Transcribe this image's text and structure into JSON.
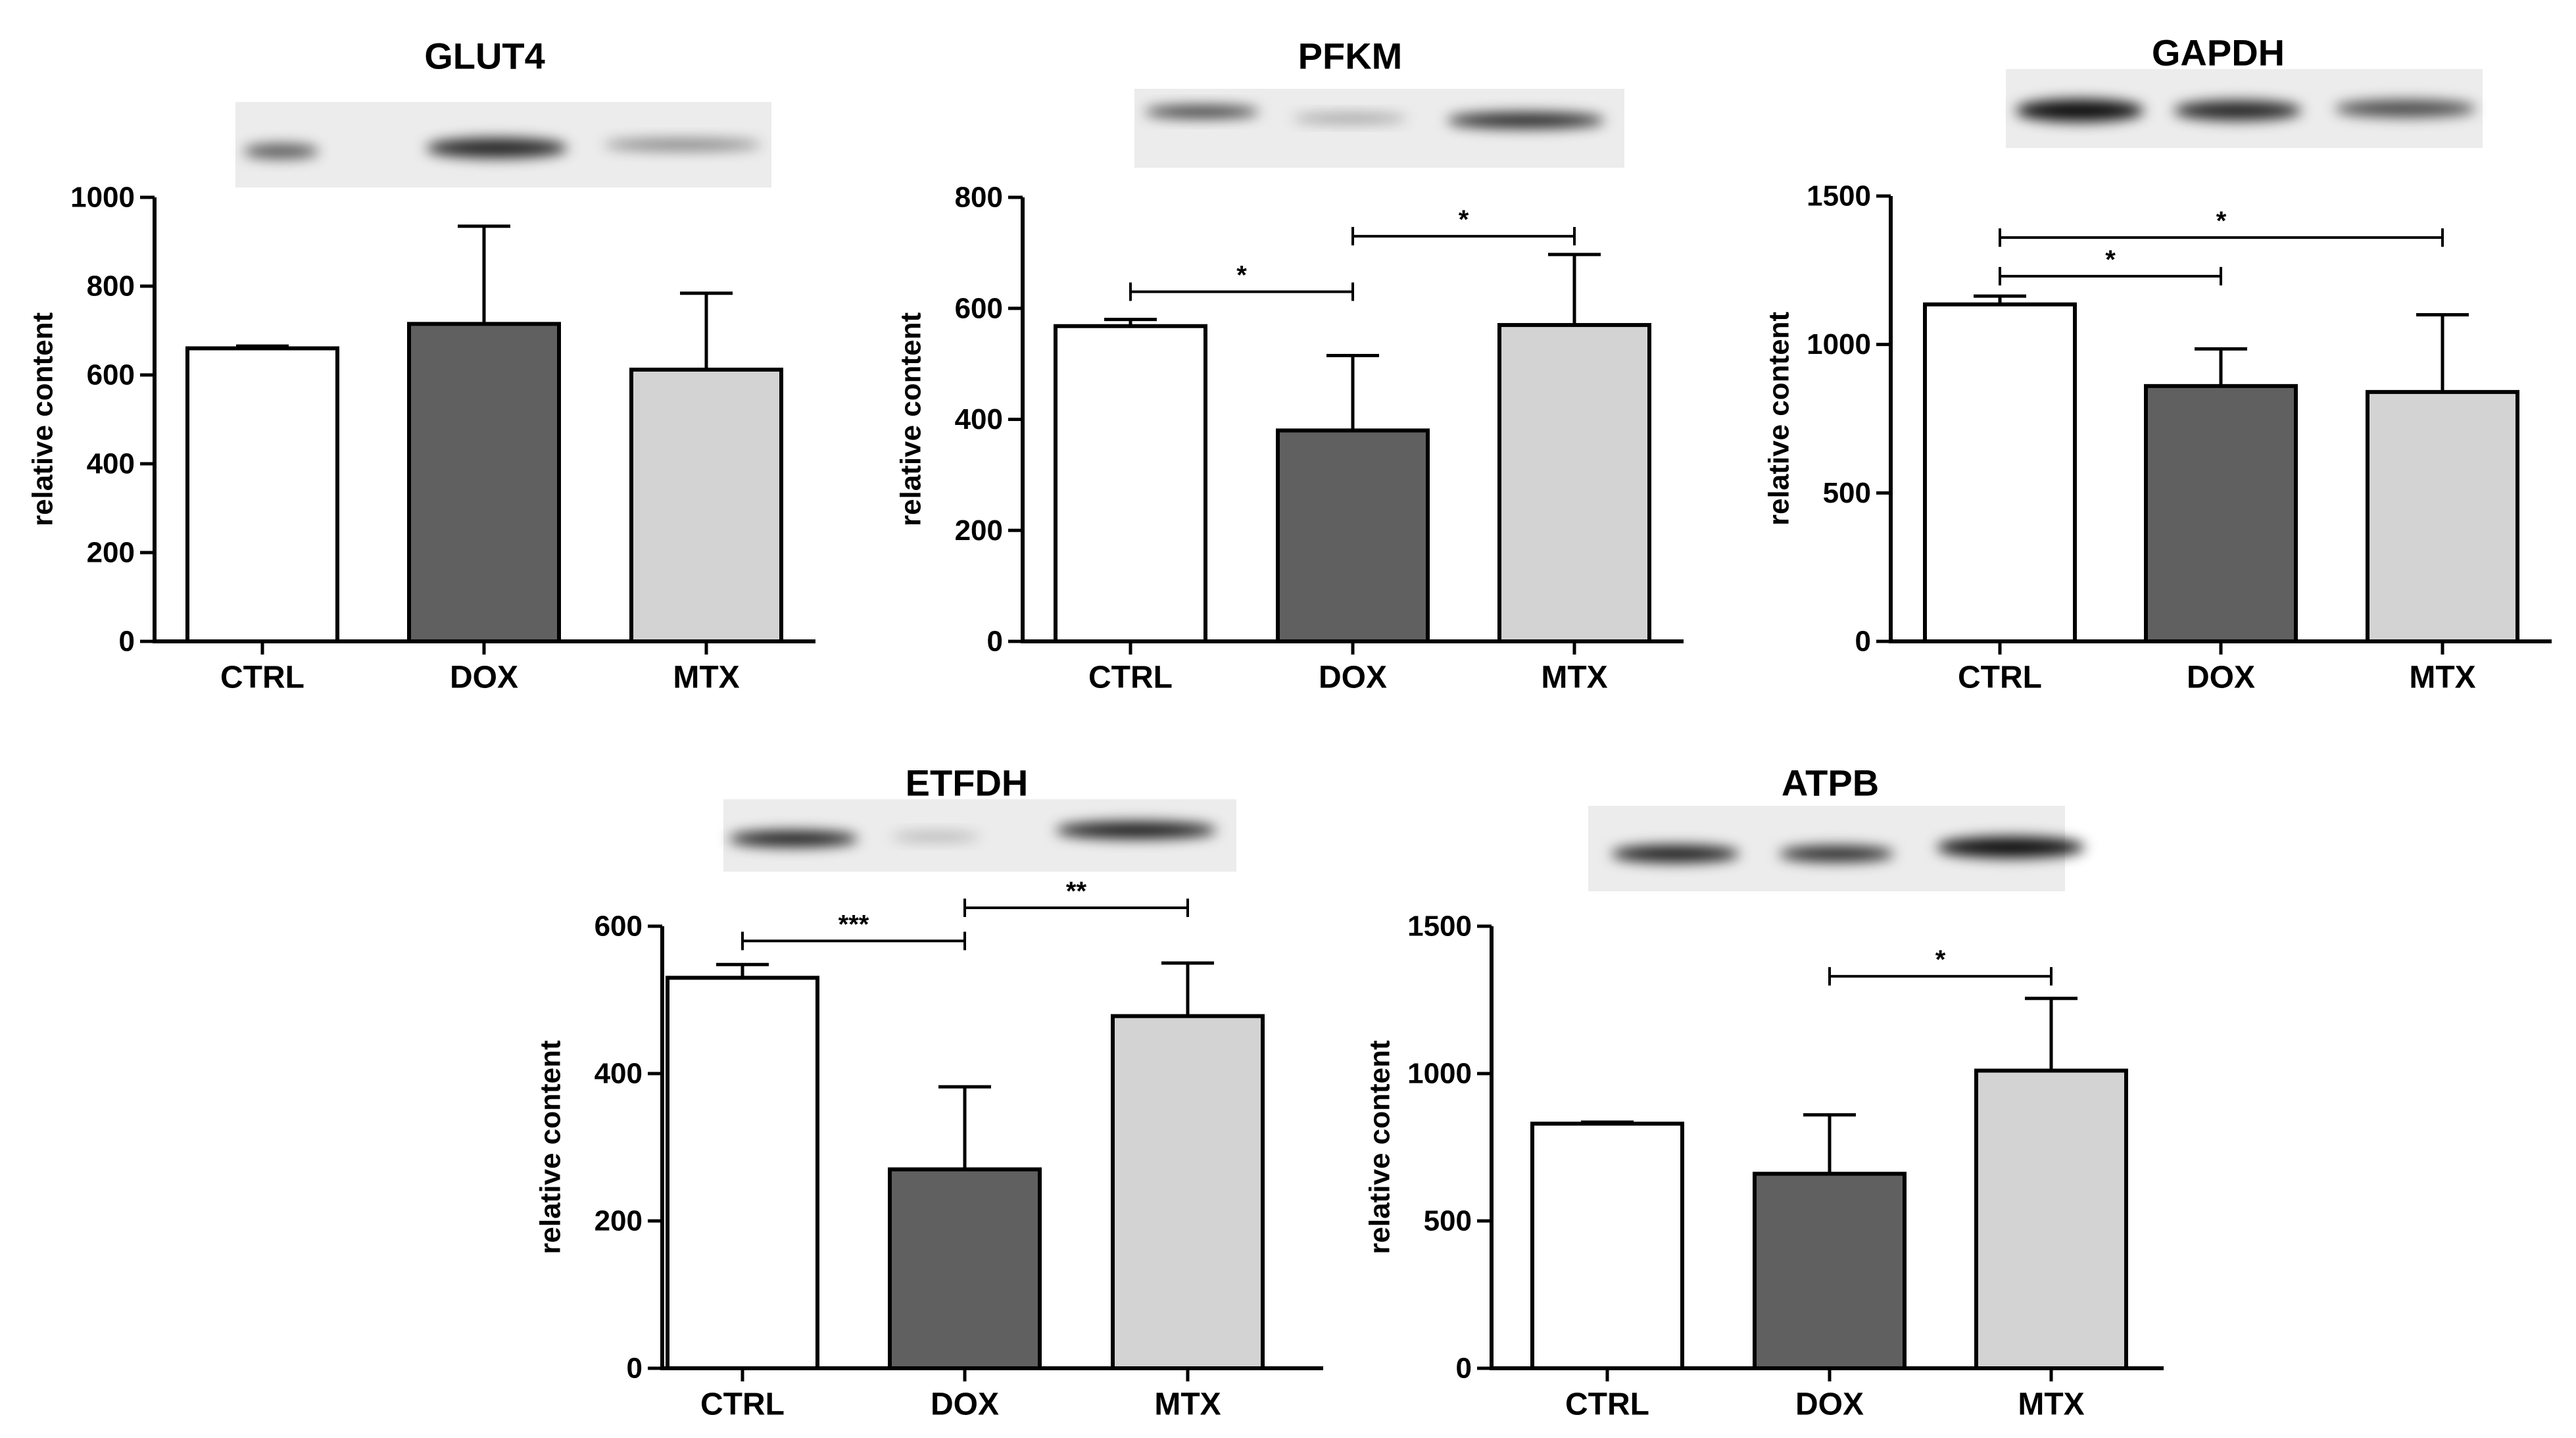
{
  "colors": {
    "CTRL": "#ffffff",
    "DOX": "#606060",
    "MTX": "#d3d3d3",
    "axis": "#000000"
  },
  "chart_data": [
    {
      "type": "bar",
      "title": "GLUT4",
      "ylabel": "relative content",
      "categories": [
        "CTRL",
        "DOX",
        "MTX"
      ],
      "values": [
        660,
        715,
        612
      ],
      "errors": [
        5,
        220,
        172
      ],
      "ylim": [
        0,
        1000
      ],
      "yticks": [
        0,
        200,
        400,
        600,
        800,
        1000
      ],
      "significance": [],
      "grid": false
    },
    {
      "type": "bar",
      "title": "PFKM",
      "ylabel": "relative content",
      "categories": [
        "CTRL",
        "DOX",
        "MTX"
      ],
      "values": [
        568,
        380,
        570
      ],
      "errors": [
        12,
        135,
        127
      ],
      "ylim": [
        0,
        800
      ],
      "yticks": [
        0,
        200,
        400,
        600,
        800
      ],
      "significance": [
        {
          "from": 0,
          "to": 1,
          "label": "*",
          "y": 630
        },
        {
          "from": 1,
          "to": 2,
          "label": "*",
          "y": 730
        }
      ],
      "grid": false
    },
    {
      "type": "bar",
      "title": "GAPDH",
      "ylabel": "relative content",
      "categories": [
        "CTRL",
        "DOX",
        "MTX"
      ],
      "values": [
        1135,
        860,
        840
      ],
      "errors": [
        28,
        125,
        260
      ],
      "ylim": [
        0,
        1500
      ],
      "yticks": [
        0,
        500,
        1000,
        1500
      ],
      "significance": [
        {
          "from": 0,
          "to": 1,
          "label": "*",
          "y": 1230
        },
        {
          "from": 0,
          "to": 2,
          "label": "*",
          "y": 1360
        }
      ],
      "grid": false
    },
    {
      "type": "bar",
      "title": "ETFDH",
      "ylabel": "relative content",
      "categories": [
        "CTRL",
        "DOX",
        "MTX"
      ],
      "values": [
        530,
        270,
        478
      ],
      "errors": [
        18,
        112,
        72
      ],
      "ylim": [
        0,
        600
      ],
      "yticks": [
        0,
        200,
        400,
        600
      ],
      "significance": [
        {
          "from": 0,
          "to": 1,
          "label": "***",
          "y": 580
        },
        {
          "from": 1,
          "to": 2,
          "label": "**",
          "y": 625
        }
      ],
      "grid": false
    },
    {
      "type": "bar",
      "title": "ATPB",
      "ylabel": "relative content",
      "categories": [
        "CTRL",
        "DOX",
        "MTX"
      ],
      "values": [
        830,
        660,
        1010
      ],
      "errors": [
        5,
        200,
        245
      ],
      "ylim": [
        0,
        1500
      ],
      "yticks": [
        0,
        500,
        1000,
        1500
      ],
      "significance": [
        {
          "from": 1,
          "to": 2,
          "label": "*",
          "y": 1330
        }
      ],
      "grid": false
    }
  ]
}
